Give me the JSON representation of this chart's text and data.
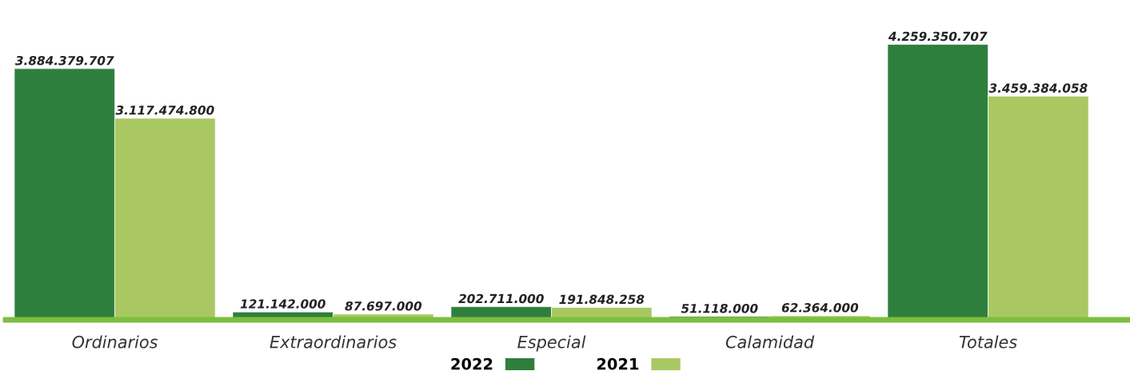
{
  "chart_data": {
    "type": "bar",
    "categories": [
      "Ordinarios",
      "Extraordinarios",
      "Especial",
      "Calamidad",
      "Totales"
    ],
    "series": [
      {
        "name": "2022",
        "color": "#2e7f3e",
        "values": [
          3884379707,
          121142000,
          202711000,
          51118000,
          4259350707
        ],
        "value_labels": [
          "3.884.379.707",
          "121.142.000",
          "202.711.000",
          "51.118.000",
          "4.259.350.707"
        ]
      },
      {
        "name": "2021",
        "color": "#a9c862",
        "values": [
          3117474800,
          87697000,
          191848258,
          62364000,
          3459384058
        ],
        "value_labels": [
          "3.117.474.800",
          "87.697.000",
          "191.848.258",
          "62.364.000",
          "3.459.384.058"
        ]
      }
    ],
    "tick_labels": "x",
    "grid": false,
    "legend": "bottom"
  }
}
